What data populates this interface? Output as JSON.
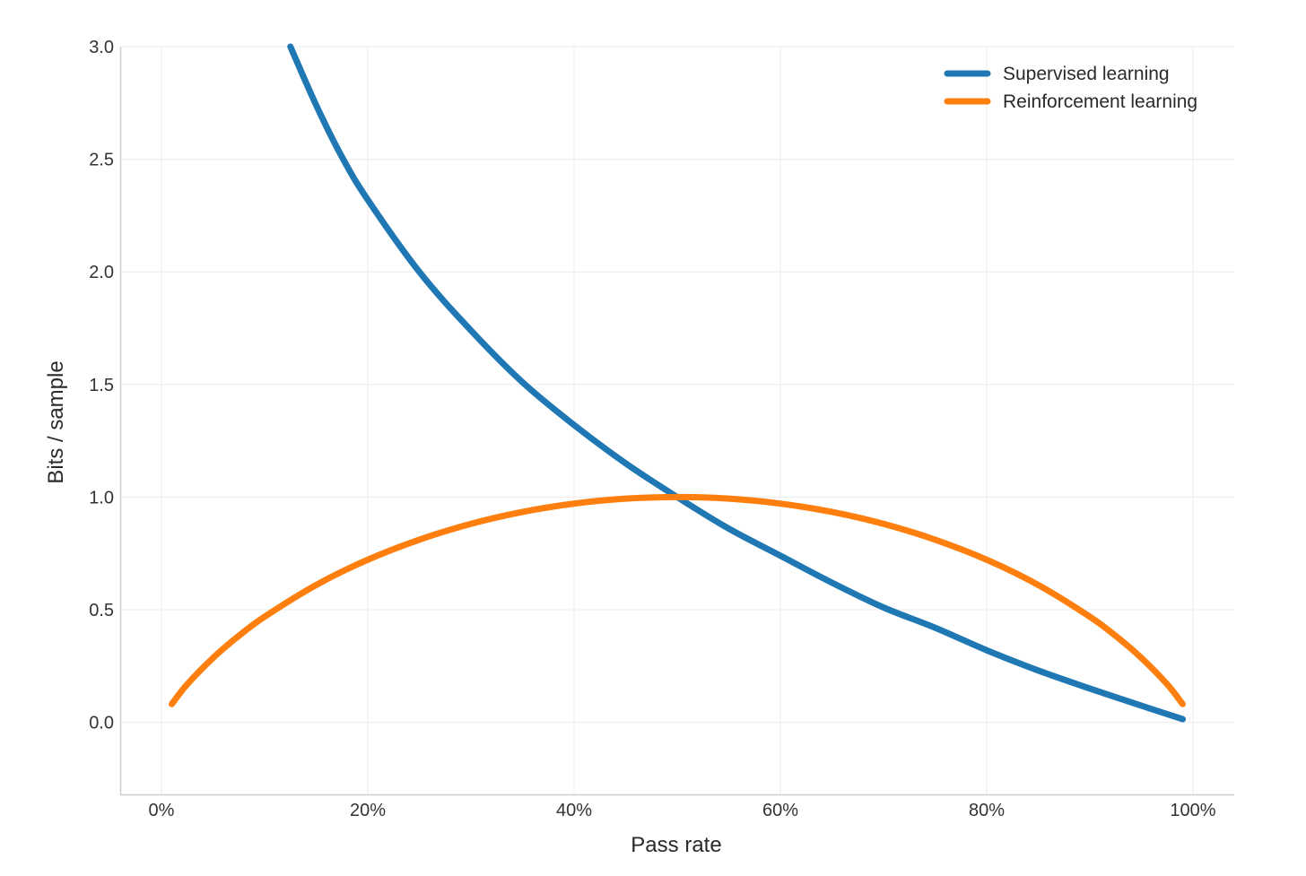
{
  "chart_data": {
    "type": "line",
    "title": "",
    "xlabel": "Pass rate",
    "ylabel": "Bits / sample",
    "xlim": [
      -0.04,
      1.04
    ],
    "ylim": [
      -0.32,
      3.0
    ],
    "x_ticks": [
      {
        "value": 0.0,
        "label": "0%"
      },
      {
        "value": 0.2,
        "label": "20%"
      },
      {
        "value": 0.4,
        "label": "40%"
      },
      {
        "value": 0.6,
        "label": "60%"
      },
      {
        "value": 0.8,
        "label": "80%"
      },
      {
        "value": 1.0,
        "label": "100%"
      }
    ],
    "y_ticks": [
      {
        "value": 0.0,
        "label": "0.0"
      },
      {
        "value": 0.5,
        "label": "0.5"
      },
      {
        "value": 1.0,
        "label": "1.0"
      },
      {
        "value": 1.5,
        "label": "1.5"
      },
      {
        "value": 2.0,
        "label": "2.0"
      },
      {
        "value": 2.5,
        "label": "2.5"
      },
      {
        "value": 3.0,
        "label": "3.0"
      }
    ],
    "grid": true,
    "legend_position": "top-right",
    "series": [
      {
        "name": "Supervised learning",
        "color": "#1f77b4",
        "points": [
          [
            0.125,
            3.0
          ],
          [
            0.15,
            2.74
          ],
          [
            0.175,
            2.51
          ],
          [
            0.2,
            2.32
          ],
          [
            0.25,
            2.0
          ],
          [
            0.3,
            1.74
          ],
          [
            0.35,
            1.51
          ],
          [
            0.4,
            1.32
          ],
          [
            0.45,
            1.15
          ],
          [
            0.5,
            1.0
          ],
          [
            0.55,
            0.86
          ],
          [
            0.6,
            0.74
          ],
          [
            0.65,
            0.62
          ],
          [
            0.7,
            0.51
          ],
          [
            0.75,
            0.42
          ],
          [
            0.8,
            0.32
          ],
          [
            0.85,
            0.23
          ],
          [
            0.9,
            0.15
          ],
          [
            0.95,
            0.074
          ],
          [
            0.99,
            0.014
          ]
        ]
      },
      {
        "name": "Reinforcement learning",
        "color": "#ff7f0e",
        "points": [
          [
            0.01,
            0.081
          ],
          [
            0.025,
            0.169
          ],
          [
            0.05,
            0.286
          ],
          [
            0.075,
            0.384
          ],
          [
            0.1,
            0.469
          ],
          [
            0.15,
            0.61
          ],
          [
            0.2,
            0.722
          ],
          [
            0.25,
            0.811
          ],
          [
            0.3,
            0.881
          ],
          [
            0.35,
            0.934
          ],
          [
            0.4,
            0.971
          ],
          [
            0.45,
            0.993
          ],
          [
            0.5,
            1.0
          ],
          [
            0.55,
            0.993
          ],
          [
            0.6,
            0.971
          ],
          [
            0.65,
            0.934
          ],
          [
            0.7,
            0.881
          ],
          [
            0.75,
            0.811
          ],
          [
            0.8,
            0.722
          ],
          [
            0.85,
            0.61
          ],
          [
            0.9,
            0.469
          ],
          [
            0.925,
            0.384
          ],
          [
            0.95,
            0.286
          ],
          [
            0.975,
            0.169
          ],
          [
            0.99,
            0.081
          ]
        ]
      }
    ]
  }
}
